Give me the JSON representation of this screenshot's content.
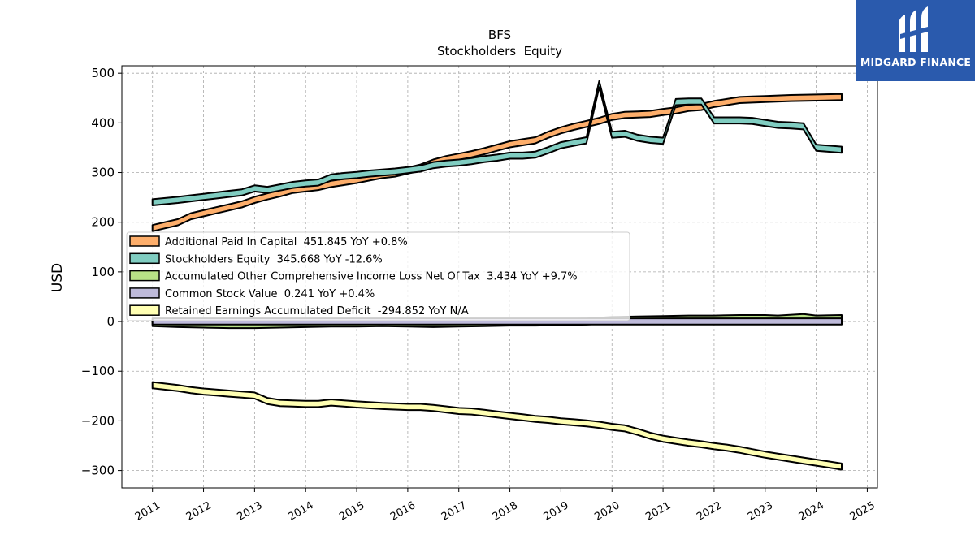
{
  "brand": {
    "name": "MIDGARD FINANCE",
    "color": "#2a5aad"
  },
  "chart_data": {
    "type": "line",
    "title": "BFS",
    "subtitle": "Stockholders  Equity",
    "ylabel": "USD",
    "xlabel": "",
    "xlim": [
      2010.4,
      2025.2
    ],
    "ylim": [
      -335,
      515
    ],
    "grid": true,
    "legend_position": "center-left",
    "x_ticks": [
      2011,
      2012,
      2013,
      2014,
      2015,
      2016,
      2017,
      2018,
      2019,
      2020,
      2021,
      2022,
      2023,
      2024,
      2025
    ],
    "y_ticks": [
      500,
      400,
      300,
      200,
      100,
      0,
      -100,
      -200,
      -300
    ],
    "y_tick_labels": [
      "500",
      "400",
      "300",
      "200",
      "100",
      "0",
      "−100",
      "−200",
      "−300"
    ],
    "series": [
      {
        "name": "Additional Paid In Capital",
        "legend_label": "Additional Paid In Capital  451.845 YoY +0.8%",
        "color": "#fdae6b",
        "points": [
          [
            2011.0,
            188
          ],
          [
            2011.5,
            200
          ],
          [
            2011.75,
            212
          ],
          [
            2012.0,
            218
          ],
          [
            2012.25,
            224
          ],
          [
            2012.5,
            230
          ],
          [
            2012.75,
            236
          ],
          [
            2013.0,
            245
          ],
          [
            2013.25,
            252
          ],
          [
            2013.5,
            258
          ],
          [
            2013.75,
            265
          ],
          [
            2014.0,
            268
          ],
          [
            2014.25,
            271
          ],
          [
            2014.5,
            277
          ],
          [
            2014.75,
            281
          ],
          [
            2015.0,
            285
          ],
          [
            2015.25,
            290
          ],
          [
            2015.5,
            295
          ],
          [
            2015.75,
            298
          ],
          [
            2016.0,
            304
          ],
          [
            2016.25,
            310
          ],
          [
            2016.5,
            320
          ],
          [
            2016.75,
            327
          ],
          [
            2017.0,
            332
          ],
          [
            2017.25,
            337
          ],
          [
            2017.5,
            343
          ],
          [
            2017.75,
            350
          ],
          [
            2018.0,
            357
          ],
          [
            2018.25,
            361
          ],
          [
            2018.5,
            365
          ],
          [
            2018.75,
            376
          ],
          [
            2019.0,
            385
          ],
          [
            2019.25,
            392
          ],
          [
            2019.5,
            398
          ],
          [
            2019.75,
            404
          ],
          [
            2020.0,
            412
          ],
          [
            2020.25,
            416
          ],
          [
            2020.5,
            417
          ],
          [
            2020.75,
            418
          ],
          [
            2021.0,
            422
          ],
          [
            2021.25,
            425
          ],
          [
            2021.5,
            430
          ],
          [
            2021.75,
            432
          ],
          [
            2022.0,
            438
          ],
          [
            2022.25,
            442
          ],
          [
            2022.5,
            446
          ],
          [
            2022.75,
            447
          ],
          [
            2023.0,
            448
          ],
          [
            2023.5,
            450
          ],
          [
            2024.0,
            451
          ],
          [
            2024.5,
            452
          ]
        ]
      },
      {
        "name": "Stockholders Equity",
        "legend_label": "Stockholders Equity  345.668 YoY -12.6%",
        "color": "#80cdc1",
        "points": [
          [
            2011.0,
            240
          ],
          [
            2011.5,
            245
          ],
          [
            2011.75,
            248
          ],
          [
            2012.0,
            251
          ],
          [
            2012.25,
            254
          ],
          [
            2012.5,
            257
          ],
          [
            2012.75,
            260
          ],
          [
            2013.0,
            268
          ],
          [
            2013.25,
            265
          ],
          [
            2013.5,
            270
          ],
          [
            2013.75,
            275
          ],
          [
            2014.0,
            278
          ],
          [
            2014.25,
            280
          ],
          [
            2014.5,
            290
          ],
          [
            2014.75,
            293
          ],
          [
            2015.0,
            295
          ],
          [
            2015.25,
            298
          ],
          [
            2015.5,
            300
          ],
          [
            2015.75,
            302
          ],
          [
            2016.0,
            305
          ],
          [
            2016.25,
            308
          ],
          [
            2016.5,
            315
          ],
          [
            2016.75,
            318
          ],
          [
            2017.0,
            320
          ],
          [
            2017.25,
            323
          ],
          [
            2017.5,
            327
          ],
          [
            2017.75,
            330
          ],
          [
            2018.0,
            334
          ],
          [
            2018.25,
            334
          ],
          [
            2018.5,
            336
          ],
          [
            2018.75,
            345
          ],
          [
            2019.0,
            355
          ],
          [
            2019.25,
            360
          ],
          [
            2019.5,
            365
          ],
          [
            2019.75,
            478
          ],
          [
            2020.0,
            376
          ],
          [
            2020.25,
            378
          ],
          [
            2020.5,
            370
          ],
          [
            2020.75,
            366
          ],
          [
            2021.0,
            364
          ],
          [
            2021.25,
            442
          ],
          [
            2021.5,
            443
          ],
          [
            2021.75,
            443
          ],
          [
            2022.0,
            405
          ],
          [
            2022.25,
            405
          ],
          [
            2022.5,
            405
          ],
          [
            2022.75,
            404
          ],
          [
            2023.0,
            400
          ],
          [
            2023.25,
            396
          ],
          [
            2023.5,
            395
          ],
          [
            2023.75,
            393
          ],
          [
            2024.0,
            350
          ],
          [
            2024.5,
            346
          ]
        ]
      },
      {
        "name": "Accumulated Other Comprehensive Income Loss Net Of Tax",
        "legend_label": "Accumulated Other Comprehensive Income Loss Net Of Tax  3.434 YoY +9.7%",
        "color": "#b8e186",
        "points": [
          [
            2011.0,
            -3
          ],
          [
            2011.5,
            -5
          ],
          [
            2012.0,
            -6
          ],
          [
            2012.5,
            -7
          ],
          [
            2013.0,
            -7
          ],
          [
            2013.5,
            -6
          ],
          [
            2014.0,
            -5
          ],
          [
            2014.5,
            -4
          ],
          [
            2015.0,
            -4
          ],
          [
            2015.5,
            -3
          ],
          [
            2016.0,
            -4
          ],
          [
            2016.5,
            -5
          ],
          [
            2017.0,
            -4
          ],
          [
            2017.5,
            -3
          ],
          [
            2018.0,
            -2
          ],
          [
            2018.5,
            -2
          ],
          [
            2019.0,
            -1
          ],
          [
            2019.5,
            0
          ],
          [
            2020.0,
            3
          ],
          [
            2020.5,
            4
          ],
          [
            2021.0,
            5
          ],
          [
            2021.5,
            6
          ],
          [
            2022.0,
            6
          ],
          [
            2022.5,
            7
          ],
          [
            2023.0,
            7
          ],
          [
            2023.25,
            6
          ],
          [
            2023.75,
            9
          ],
          [
            2024.0,
            6
          ],
          [
            2024.5,
            7
          ]
        ]
      },
      {
        "name": "Common Stock Value",
        "legend_label": "Common Stock Value  0.241 YoY +0.4%",
        "color": "#bebada",
        "points": [
          [
            2011.0,
            0.2
          ],
          [
            2012.0,
            0.2
          ],
          [
            2013.0,
            0.2
          ],
          [
            2014.0,
            0.2
          ],
          [
            2015.0,
            0.2
          ],
          [
            2016.0,
            0.2
          ],
          [
            2017.0,
            0.2
          ],
          [
            2018.0,
            0.2
          ],
          [
            2019.0,
            0.2
          ],
          [
            2020.0,
            0.2
          ],
          [
            2021.0,
            0.2
          ],
          [
            2022.0,
            0.2
          ],
          [
            2023.0,
            0.2
          ],
          [
            2024.0,
            0.24
          ],
          [
            2024.5,
            0.241
          ]
        ]
      },
      {
        "name": "Retained Earnings Accumulated Deficit",
        "legend_label": "Retained Earnings Accumulated Deficit  -294.852 YoY N/A",
        "color": "#ffffb3",
        "points": [
          [
            2011.0,
            -128
          ],
          [
            2011.5,
            -134
          ],
          [
            2011.75,
            -138
          ],
          [
            2012.0,
            -141
          ],
          [
            2012.25,
            -143
          ],
          [
            2012.5,
            -145
          ],
          [
            2012.75,
            -147
          ],
          [
            2013.0,
            -149
          ],
          [
            2013.25,
            -160
          ],
          [
            2013.5,
            -164
          ],
          [
            2013.75,
            -165
          ],
          [
            2014.0,
            -166
          ],
          [
            2014.25,
            -166
          ],
          [
            2014.5,
            -163
          ],
          [
            2014.75,
            -165
          ],
          [
            2015.0,
            -167
          ],
          [
            2015.5,
            -170
          ],
          [
            2016.0,
            -172
          ],
          [
            2016.25,
            -172
          ],
          [
            2016.5,
            -174
          ],
          [
            2016.75,
            -177
          ],
          [
            2017.0,
            -180
          ],
          [
            2017.25,
            -181
          ],
          [
            2017.5,
            -184
          ],
          [
            2017.75,
            -187
          ],
          [
            2018.0,
            -190
          ],
          [
            2018.25,
            -193
          ],
          [
            2018.5,
            -196
          ],
          [
            2018.75,
            -198
          ],
          [
            2019.0,
            -201
          ],
          [
            2019.25,
            -203
          ],
          [
            2019.5,
            -205
          ],
          [
            2019.75,
            -208
          ],
          [
            2020.0,
            -212
          ],
          [
            2020.25,
            -215
          ],
          [
            2020.5,
            -222
          ],
          [
            2020.75,
            -230
          ],
          [
            2021.0,
            -236
          ],
          [
            2021.25,
            -240
          ],
          [
            2021.5,
            -244
          ],
          [
            2021.75,
            -247
          ],
          [
            2022.0,
            -251
          ],
          [
            2022.25,
            -254
          ],
          [
            2022.5,
            -258
          ],
          [
            2022.75,
            -263
          ],
          [
            2023.0,
            -268
          ],
          [
            2023.25,
            -272
          ],
          [
            2023.5,
            -276
          ],
          [
            2023.75,
            -280
          ],
          [
            2024.0,
            -284
          ],
          [
            2024.5,
            -292
          ]
        ]
      }
    ]
  }
}
